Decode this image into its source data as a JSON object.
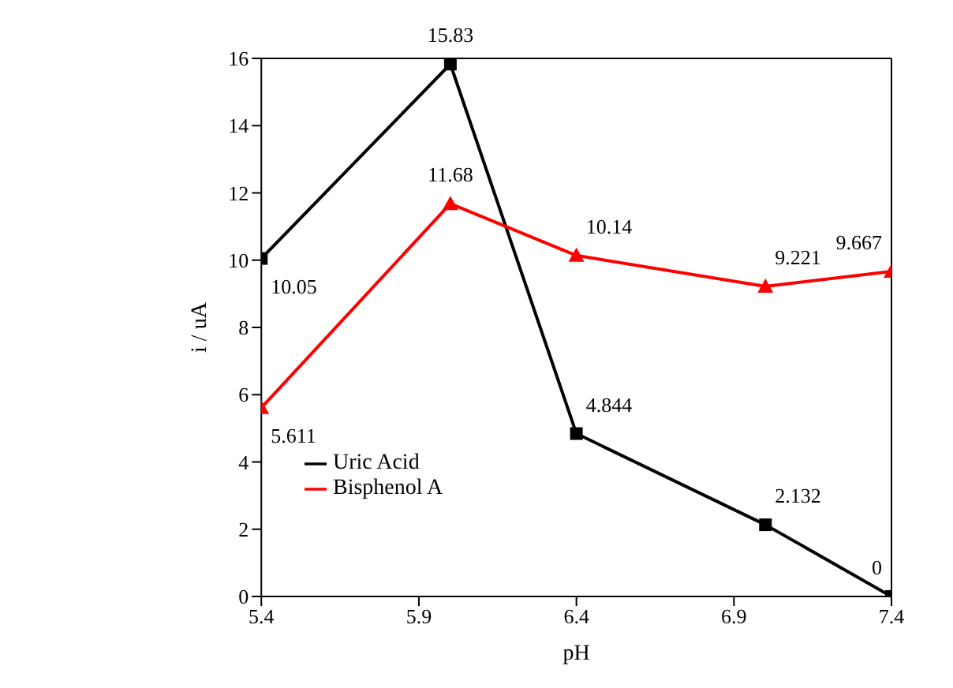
{
  "chart_data": {
    "type": "line",
    "xlabel": "pH",
    "ylabel": "i / uA",
    "x": [
      5.4,
      6.0,
      6.4,
      7.0,
      7.4
    ],
    "xlim": [
      5.4,
      7.4
    ],
    "xticks": [
      5.4,
      5.9,
      6.4,
      6.9,
      7.4
    ],
    "ylim": [
      0,
      16
    ],
    "yticks": [
      0,
      2,
      4,
      6,
      8,
      10,
      12,
      14,
      16
    ],
    "grid": false,
    "legend": "bottom left",
    "series": [
      {
        "name": "Uric Acid",
        "color": "#000000",
        "marker": "square",
        "values": [
          10.05,
          15.83,
          4.844,
          2.132,
          0
        ],
        "value_labels": [
          "10.05",
          "15.83",
          "4.844",
          "2.132",
          "0"
        ]
      },
      {
        "name": "Bisphenol A",
        "color": "#ff0000",
        "marker": "triangle",
        "values": [
          5.611,
          11.68,
          10.14,
          9.221,
          9.667
        ],
        "value_labels": [
          "5.611",
          "11.68",
          "10.14",
          "9.221",
          "9.667"
        ]
      }
    ]
  }
}
